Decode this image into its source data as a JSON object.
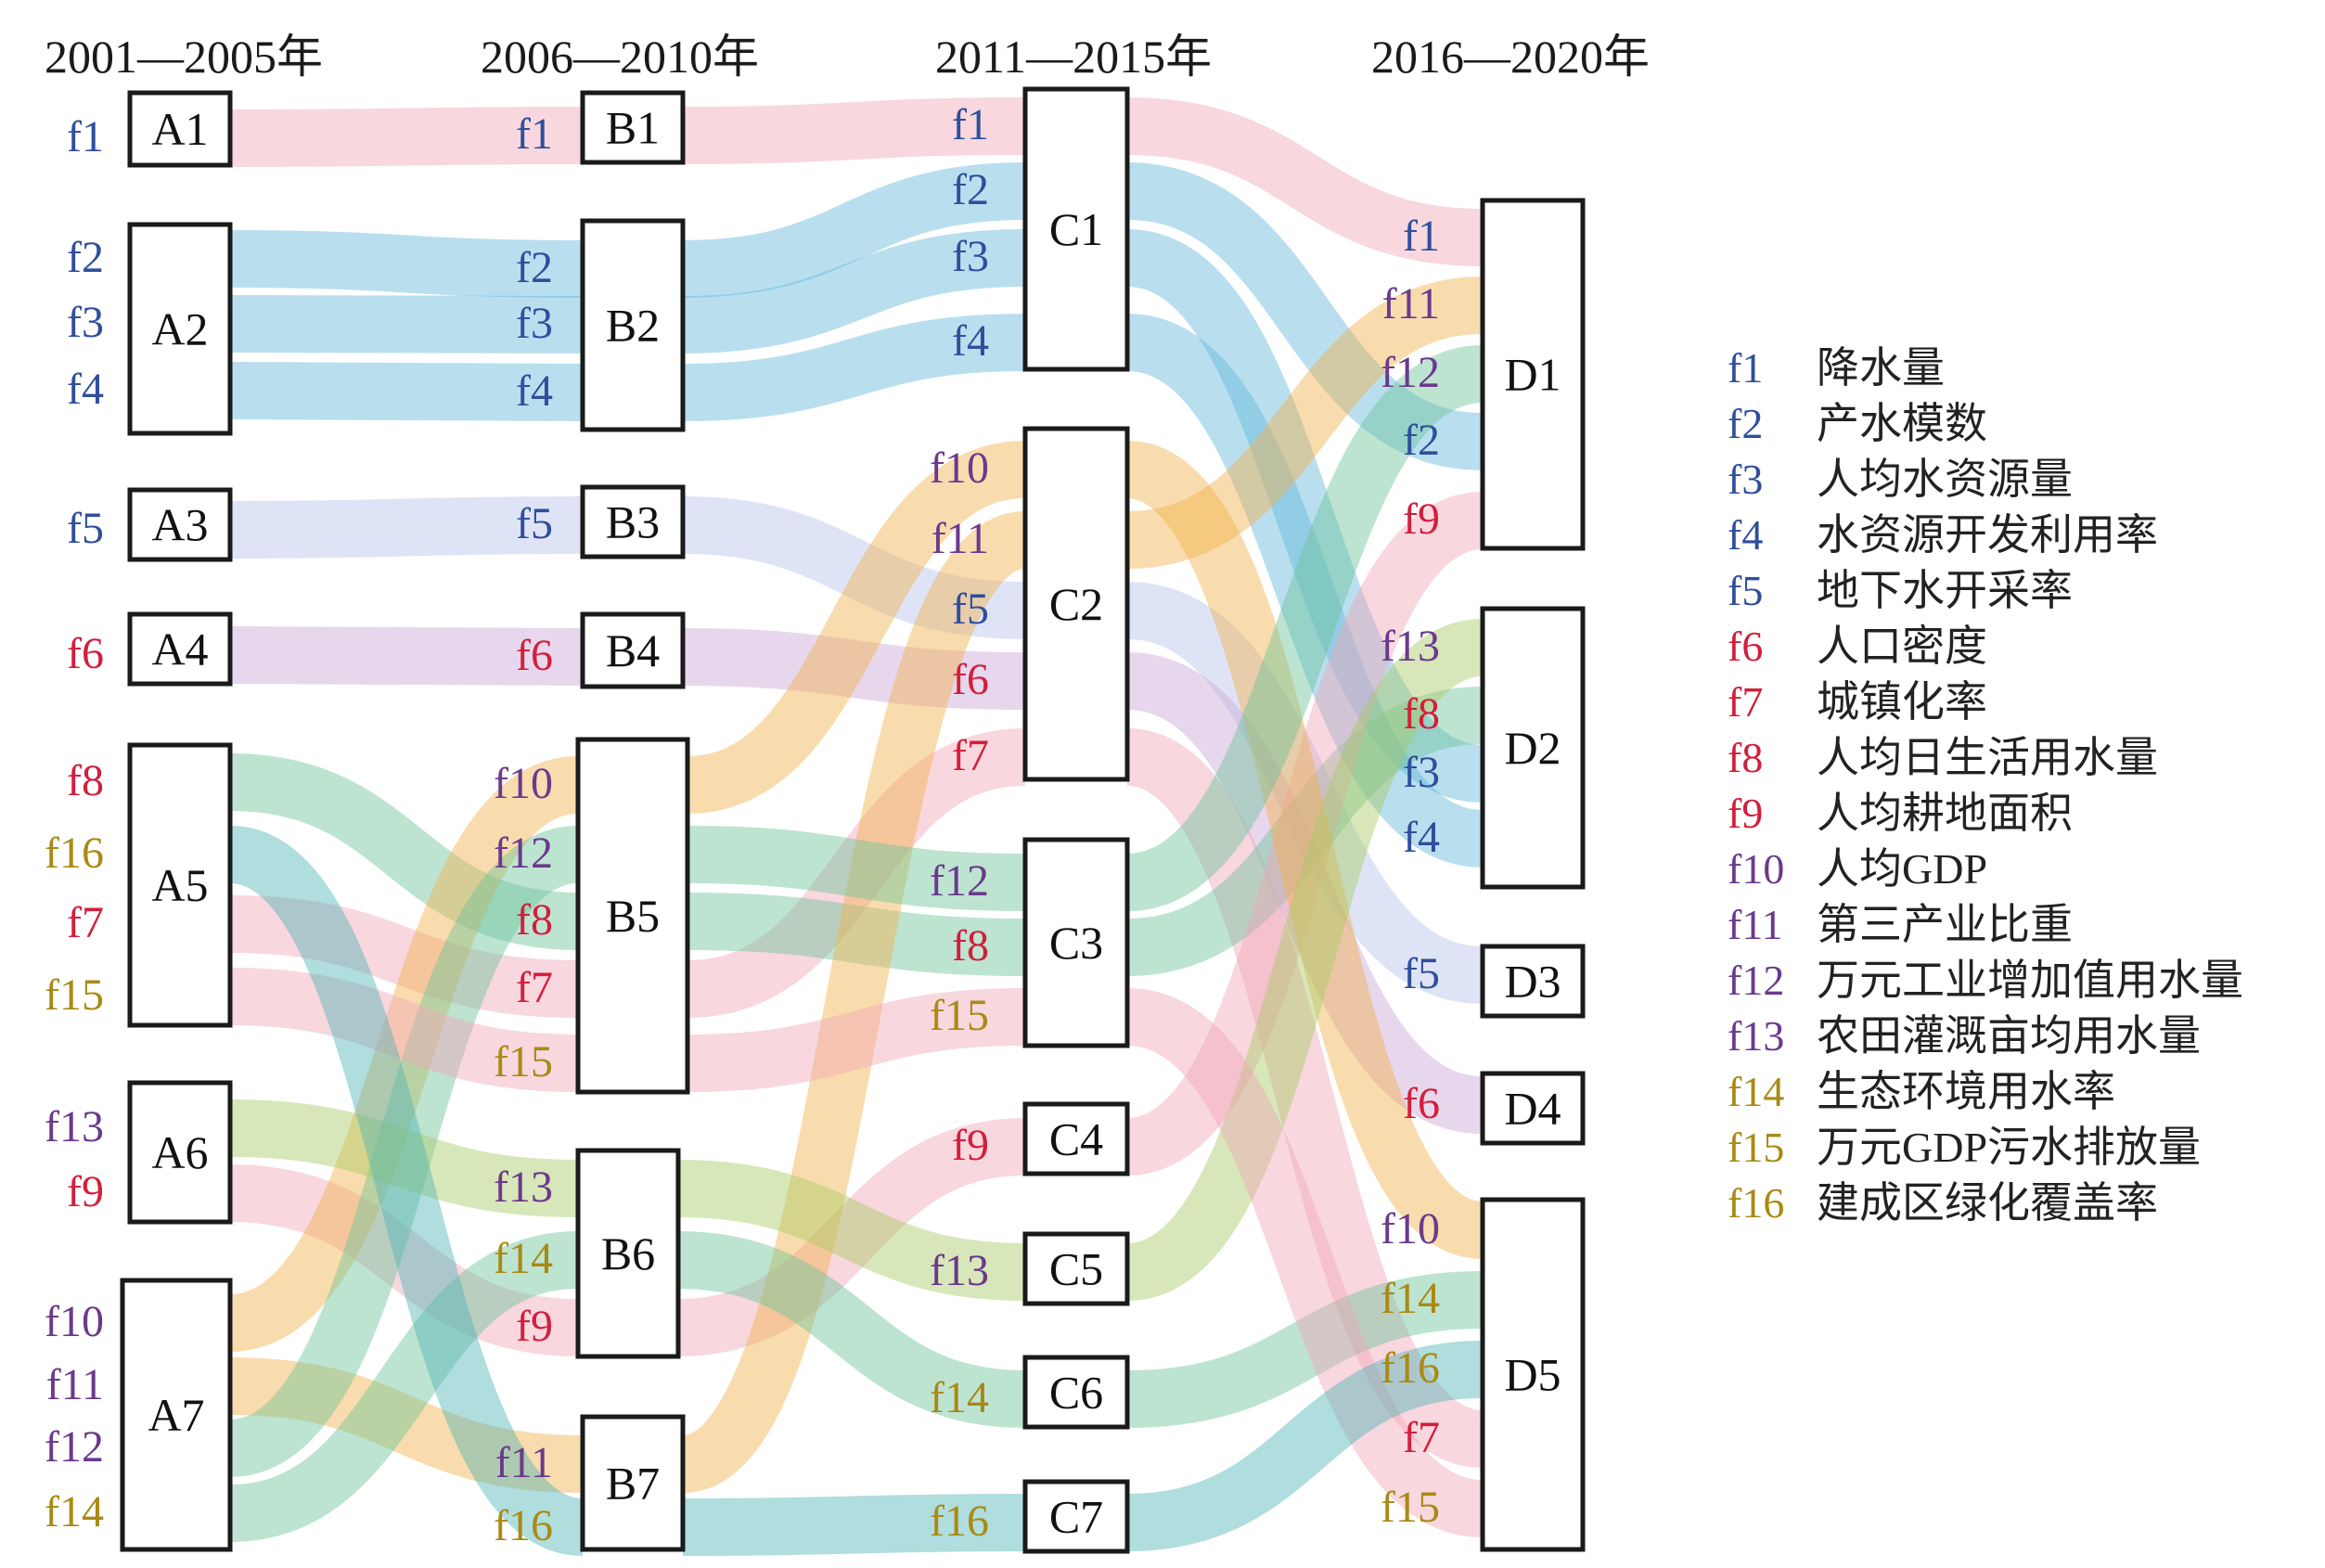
{
  "periods": [
    "2001—2005年",
    "2006—2010年",
    "2011—2015年",
    "2016—2020年"
  ],
  "colors": {
    "blue_text": "#2f4f9c",
    "red_text": "#d21f3c",
    "purple_text": "#6b3a8c",
    "olive_text": "#a98a16",
    "pink_band": "#f0a6b8",
    "blue_band": "#63b8db",
    "lavender_band": "#b7c1ea",
    "violet_band": "#c9a6d8",
    "green_band": "#6cc39a",
    "orange_band": "#f2b24c",
    "olive_band": "#a9c964",
    "teal_band": "#4fb3b5"
  },
  "nodes": {
    "A1": "A1",
    "A2": "A2",
    "A3": "A3",
    "A4": "A4",
    "A5": "A5",
    "A6": "A6",
    "A7": "A7",
    "B1": "B1",
    "B2": "B2",
    "B3": "B3",
    "B4": "B4",
    "B5": "B5",
    "B6": "B6",
    "B7": "B7",
    "C1": "C1",
    "C2": "C2",
    "C3": "C3",
    "C4": "C4",
    "C5": "C5",
    "C6": "C6",
    "C7": "C7",
    "D1": "D1",
    "D2": "D2",
    "D3": "D3",
    "D4": "D4",
    "D5": "D5"
  },
  "membership": {
    "A1": [
      "f1"
    ],
    "A2": [
      "f2",
      "f3",
      "f4"
    ],
    "A3": [
      "f5"
    ],
    "A4": [
      "f6"
    ],
    "A5": [
      "f8",
      "f16",
      "f7",
      "f15"
    ],
    "A6": [
      "f13",
      "f9"
    ],
    "A7": [
      "f10",
      "f11",
      "f12",
      "f14"
    ],
    "B1": [
      "f1"
    ],
    "B2": [
      "f2",
      "f3",
      "f4"
    ],
    "B3": [
      "f5"
    ],
    "B4": [
      "f6"
    ],
    "B5": [
      "f10",
      "f12",
      "f8",
      "f7",
      "f15"
    ],
    "B6": [
      "f13",
      "f14",
      "f9"
    ],
    "B7": [
      "f11",
      "f16"
    ],
    "C1": [
      "f1",
      "f2",
      "f3",
      "f4"
    ],
    "C2": [
      "f10",
      "f11",
      "f5",
      "f6",
      "f7"
    ],
    "C3": [
      "f12",
      "f8",
      "f15"
    ],
    "C4": [
      "f9"
    ],
    "C5": [
      "f13"
    ],
    "C6": [
      "f14"
    ],
    "C7": [
      "f16"
    ],
    "D1": [
      "f1",
      "f11",
      "f12",
      "f2",
      "f9"
    ],
    "D2": [
      "f13",
      "f8",
      "f3",
      "f4"
    ],
    "D3": [
      "f5"
    ],
    "D4": [
      "f6"
    ],
    "D5": [
      "f10",
      "f14",
      "f16",
      "f7",
      "f15"
    ]
  },
  "factor_labels": {
    "f1": "f1",
    "f2": "f2",
    "f3": "f3",
    "f4": "f4",
    "f5": "f5",
    "f6": "f6",
    "f7": "f7",
    "f8": "f8",
    "f9": "f9",
    "f10": "f10",
    "f11": "f11",
    "f12": "f12",
    "f13": "f13",
    "f14": "f14",
    "f15": "f15",
    "f16": "f16"
  },
  "legend": [
    {
      "code": "f1",
      "name": "降水量"
    },
    {
      "code": "f2",
      "name": "产水模数"
    },
    {
      "code": "f3",
      "name": "人均水资源量"
    },
    {
      "code": "f4",
      "name": "水资源开发利用率"
    },
    {
      "code": "f5",
      "name": "地下水开采率"
    },
    {
      "code": "f6",
      "name": "人口密度"
    },
    {
      "code": "f7",
      "name": "城镇化率"
    },
    {
      "code": "f8",
      "name": "人均日生活用水量"
    },
    {
      "code": "f9",
      "name": "人均耕地面积"
    },
    {
      "code": "f10",
      "name": "人均GDP"
    },
    {
      "code": "f11",
      "name": "第三产业比重"
    },
    {
      "code": "f12",
      "name": "万元工业增加值用水量"
    },
    {
      "code": "f13",
      "name": "农田灌溉亩均用水量"
    },
    {
      "code": "f14",
      "name": "生态环境用水率"
    },
    {
      "code": "f15",
      "name": "万元GDP污水排放量"
    },
    {
      "code": "f16",
      "name": "建成区绿化覆盖率"
    }
  ]
}
